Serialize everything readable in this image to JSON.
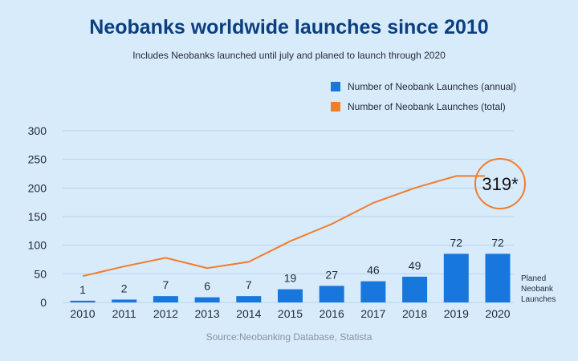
{
  "title": "Neobanks worldwide launches since 2010",
  "subtitle": "Includes Neobanks launched until july and planed to launch through 2020",
  "source": "Source:Neobanking Database, Statista",
  "colors": {
    "annual": "#1877dd",
    "total": "#f07d2c",
    "title": "#0b3f7e",
    "background": "#d8ebfb"
  },
  "chart_data": {
    "type": "bar",
    "categories": [
      "2010",
      "2011",
      "2012",
      "2013",
      "2014",
      "2015",
      "2016",
      "2017",
      "2018",
      "2019",
      "2020"
    ],
    "series": [
      {
        "name": "Number of Neobank Launches (annual)",
        "type": "bar",
        "values": [
          1,
          2,
          7,
          6,
          7,
          19,
          27,
          46,
          49,
          72,
          72
        ],
        "labels": [
          "1",
          "2",
          "7",
          "6",
          "7",
          "19",
          "27",
          "46",
          "49",
          "72",
          "72"
        ]
      },
      {
        "name": "Number of Neobank Launches (total)",
        "type": "line",
        "values": [
          46,
          63,
          78,
          60,
          71,
          107,
          137,
          174,
          200,
          221,
          221
        ]
      }
    ],
    "bar_display_values": [
      3,
      5,
      11,
      9,
      11,
      23,
      29,
      37,
      45,
      85,
      85
    ],
    "annotation": "319*",
    "side_note": [
      "Planed",
      "Neobank",
      "Launches"
    ],
    "yticks": [
      0,
      50,
      100,
      150,
      200,
      250,
      300
    ],
    "ylim": [
      0,
      300
    ],
    "grid": true,
    "legend_position": "top-right"
  }
}
